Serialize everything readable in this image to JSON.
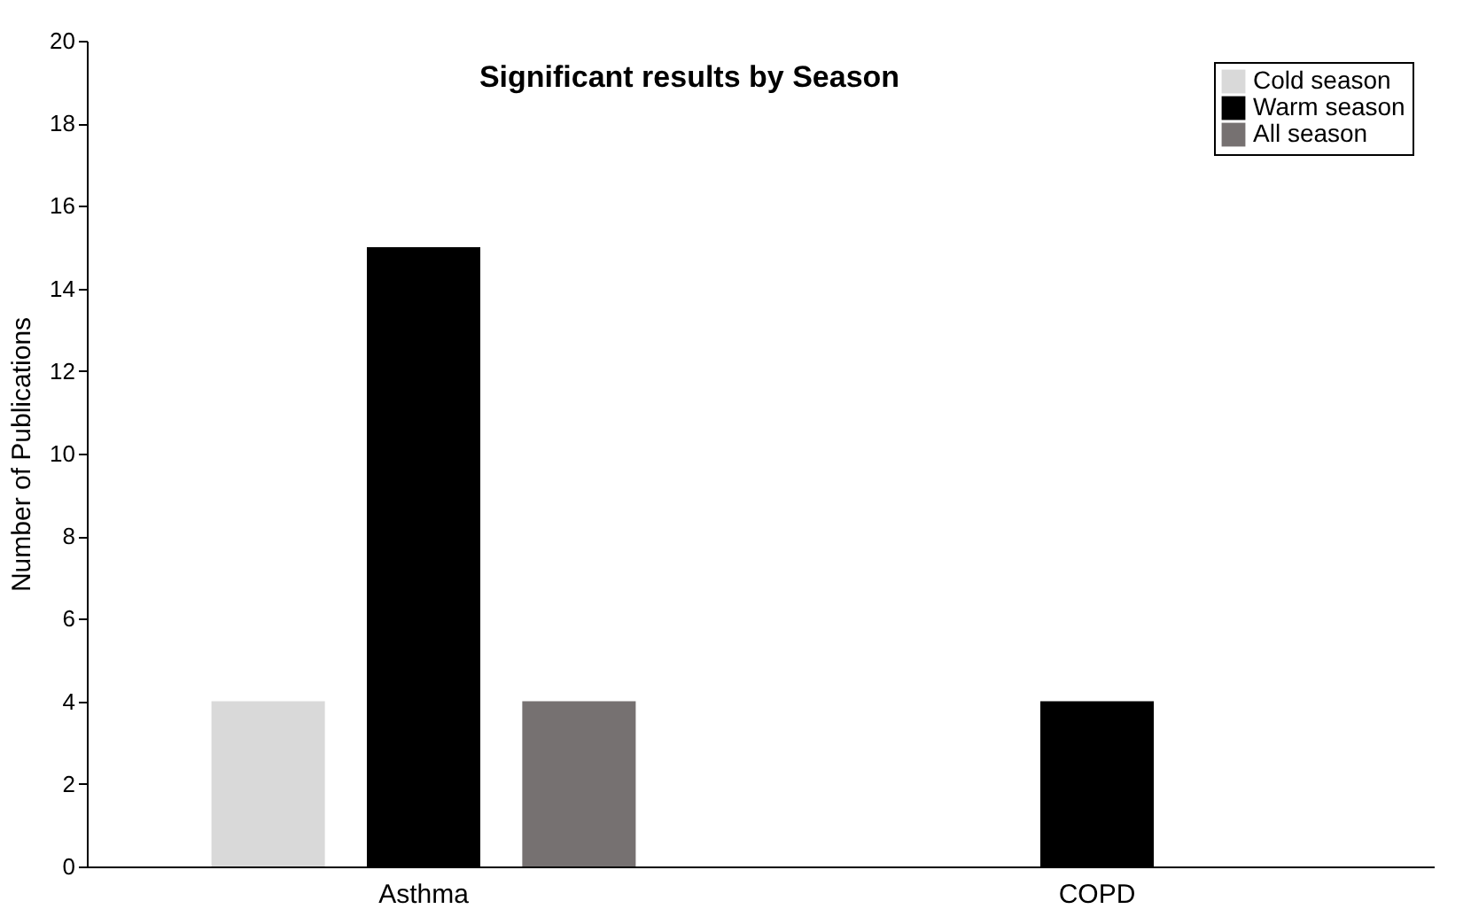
{
  "chart_data": {
    "type": "bar",
    "title": "Significant results by Season",
    "ylabel": "Number of Publications",
    "categories": [
      "Asthma",
      "COPD"
    ],
    "series": [
      {
        "name": "Cold season",
        "color": "#d9d9d9",
        "values": [
          4,
          0
        ]
      },
      {
        "name": "Warm season",
        "color": "#000000",
        "values": [
          15,
          4
        ]
      },
      {
        "name": "All season",
        "color": "#767171",
        "values": [
          4,
          0
        ]
      }
    ],
    "ylim": [
      0,
      20
    ],
    "yticks": [
      0,
      2,
      4,
      6,
      8,
      10,
      12,
      14,
      16,
      18,
      20
    ],
    "grid": false,
    "legend": "top right"
  }
}
